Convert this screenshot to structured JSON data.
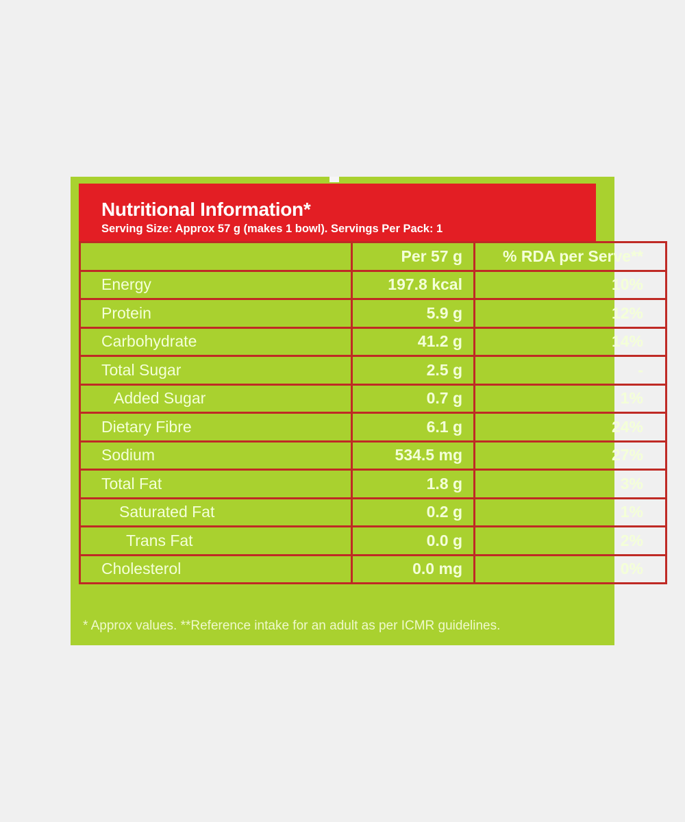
{
  "label": {
    "title": "Nutritional Information*",
    "serving_info": "Serving Size: Approx 57 g (makes 1 bowl). Servings Per Pack: 1",
    "columns": {
      "nutrient": "",
      "amount": "Per 57 g",
      "rda": "% RDA per Serve**"
    },
    "rows": [
      {
        "nutrient": "Energy",
        "amount": "197.8 kcal",
        "rda": "10%"
      },
      {
        "nutrient": "Protein",
        "amount": "5.9 g",
        "rda": "12%"
      },
      {
        "nutrient": "Carbohydrate",
        "amount": "41.2 g",
        "rda": "14%"
      },
      {
        "nutrient": "Total Sugar",
        "amount": "2.5 g",
        "rda": "-"
      },
      {
        "nutrient": "Added Sugar",
        "amount": "0.7 g",
        "rda": "1%"
      },
      {
        "nutrient": "Dietary Fibre",
        "amount": "6.1 g",
        "rda": "24%"
      },
      {
        "nutrient": "Sodium",
        "amount": "534.5 mg",
        "rda": "27%"
      },
      {
        "nutrient": "Total Fat",
        "amount": "1.8 g",
        "rda": "3%"
      },
      {
        "nutrient": "Saturated Fat",
        "amount": "0.2 g",
        "rda": "1%"
      },
      {
        "nutrient": "Trans Fat",
        "amount": "0.0 g",
        "rda": "2%"
      },
      {
        "nutrient": "Cholesterol",
        "amount": "0.0 mg",
        "rda": "0%"
      }
    ],
    "footnote": "* Approx values. **Reference intake for an adult as per ICMR guidelines."
  },
  "colors": {
    "panel_green": "#a9d12f",
    "header_red": "#e31e24",
    "grid_red": "#bf2a25",
    "text_light": "#f4ffd8"
  }
}
